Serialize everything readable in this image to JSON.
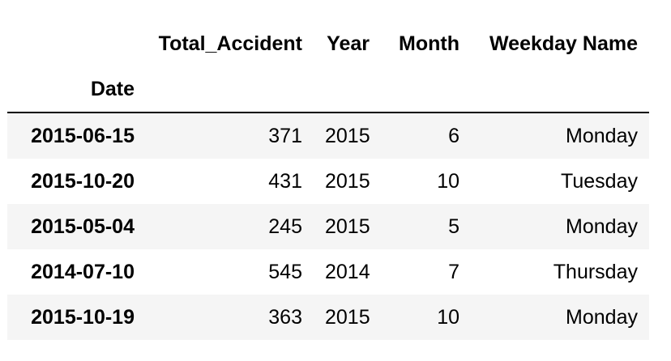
{
  "table": {
    "columns": [
      "Total_Accident",
      "Year",
      "Month",
      "Weekday Name"
    ],
    "index_name": "Date",
    "rows": [
      {
        "index": "2015-06-15",
        "cells": [
          "371",
          "2015",
          "6",
          "Monday"
        ]
      },
      {
        "index": "2015-10-20",
        "cells": [
          "431",
          "2015",
          "10",
          "Tuesday"
        ]
      },
      {
        "index": "2015-05-04",
        "cells": [
          "245",
          "2015",
          "5",
          "Monday"
        ]
      },
      {
        "index": "2014-07-10",
        "cells": [
          "545",
          "2014",
          "7",
          "Thursday"
        ]
      },
      {
        "index": "2015-10-19",
        "cells": [
          "363",
          "2015",
          "10",
          "Monday"
        ]
      }
    ]
  },
  "colors": {
    "row_stripe": "#f5f5f5",
    "header_rule": "#000000"
  }
}
